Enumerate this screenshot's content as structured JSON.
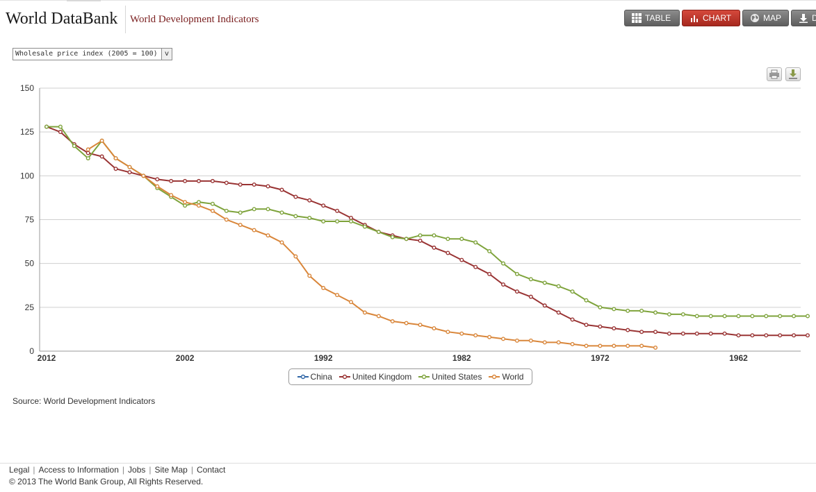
{
  "header": {
    "brand": "World DataBank",
    "subtitle": "World Development Indicators"
  },
  "views": {
    "table": "TABLE",
    "chart": "CHART",
    "map": "MAP",
    "download": "D"
  },
  "indicator_select": {
    "value": "Wholesale price index (2005 = 100)",
    "arrow": "v"
  },
  "colors": {
    "China": "#2e65a6",
    "United Kingdom": "#993333",
    "United States": "#7ea33b",
    "World": "#d9863a",
    "active_button": "#c0392b"
  },
  "chart_data": {
    "type": "line",
    "x_axis": "reversed",
    "xlim": [
      2012,
      1957
    ],
    "ylim": [
      0,
      150
    ],
    "yticks": [
      0,
      25,
      50,
      75,
      100,
      125,
      150
    ],
    "xticks": [
      2012,
      2002,
      1992,
      1982,
      1972,
      1962
    ],
    "grid": true,
    "legend_position": "bottom",
    "series": [
      {
        "name": "China",
        "x": [],
        "values": []
      },
      {
        "name": "United Kingdom",
        "x": [
          2012,
          2011,
          2010,
          2009,
          2008,
          2007,
          2006,
          2005,
          2004,
          2003,
          2002,
          2001,
          2000,
          1999,
          1998,
          1997,
          1996,
          1995,
          1994,
          1993,
          1992,
          1991,
          1990,
          1989,
          1988,
          1987,
          1986,
          1985,
          1984,
          1983,
          1982,
          1981,
          1980,
          1979,
          1978,
          1977,
          1976,
          1975,
          1974,
          1973,
          1972,
          1971,
          1970,
          1969,
          1968,
          1967,
          1966,
          1965,
          1964,
          1963,
          1962,
          1961,
          1960,
          1959,
          1958,
          1957
        ],
        "values": [
          128,
          125,
          118,
          113,
          111,
          104,
          102,
          100,
          98,
          97,
          97,
          97,
          97,
          96,
          95,
          95,
          94,
          92,
          88,
          86,
          83,
          80,
          76,
          72,
          68,
          66,
          64,
          63,
          59,
          56,
          52,
          48,
          44,
          38,
          34,
          31,
          26,
          22,
          18,
          15,
          14,
          13,
          12,
          11,
          11,
          10,
          10,
          10,
          10,
          10,
          9,
          9,
          9,
          9,
          9,
          9
        ]
      },
      {
        "name": "United States",
        "x": [
          2012,
          2011,
          2010,
          2009,
          2008,
          2007,
          2006,
          2005,
          2004,
          2003,
          2002,
          2001,
          2000,
          1999,
          1998,
          1997,
          1996,
          1995,
          1994,
          1993,
          1992,
          1991,
          1990,
          1989,
          1988,
          1987,
          1986,
          1985,
          1984,
          1983,
          1982,
          1981,
          1980,
          1979,
          1978,
          1977,
          1976,
          1975,
          1974,
          1973,
          1972,
          1971,
          1970,
          1969,
          1968,
          1967,
          1966,
          1965,
          1964,
          1963,
          1962,
          1961,
          1960,
          1959,
          1958,
          1957
        ],
        "values": [
          128,
          128,
          117,
          110,
          120,
          110,
          105,
          100,
          93,
          88,
          83,
          85,
          84,
          80,
          79,
          81,
          81,
          79,
          77,
          76,
          74,
          74,
          74,
          71,
          68,
          65,
          64,
          66,
          66,
          64,
          64,
          62,
          57,
          50,
          44,
          41,
          39,
          37,
          34,
          29,
          25,
          24,
          23,
          23,
          22,
          21,
          21,
          20,
          20,
          20,
          20,
          20,
          20,
          20,
          20,
          20
        ]
      },
      {
        "name": "World",
        "x": [
          2009,
          2008,
          2007,
          2006,
          2005,
          2004,
          2003,
          2002,
          2001,
          2000,
          1999,
          1998,
          1997,
          1996,
          1995,
          1994,
          1993,
          1992,
          1991,
          1990,
          1989,
          1988,
          1987,
          1986,
          1985,
          1984,
          1983,
          1982,
          1981,
          1980,
          1979,
          1978,
          1977,
          1976,
          1975,
          1974,
          1973,
          1972,
          1971,
          1970,
          1969,
          1968
        ],
        "values": [
          115,
          120,
          110,
          105,
          100,
          94,
          89,
          85,
          83,
          80,
          75,
          72,
          69,
          66,
          62,
          54,
          43,
          36,
          32,
          28,
          22,
          20,
          17,
          16,
          15,
          13,
          11,
          10,
          9,
          8,
          7,
          6,
          6,
          5,
          5,
          4,
          3,
          3,
          3,
          3,
          3,
          2
        ]
      }
    ]
  },
  "source": "Source: World Development Indicators",
  "footer": {
    "links": [
      "Legal",
      "Access to Information",
      "Jobs",
      "Site Map",
      "Contact"
    ],
    "copyright": "© 2013 The World Bank Group, All Rights Reserved."
  }
}
